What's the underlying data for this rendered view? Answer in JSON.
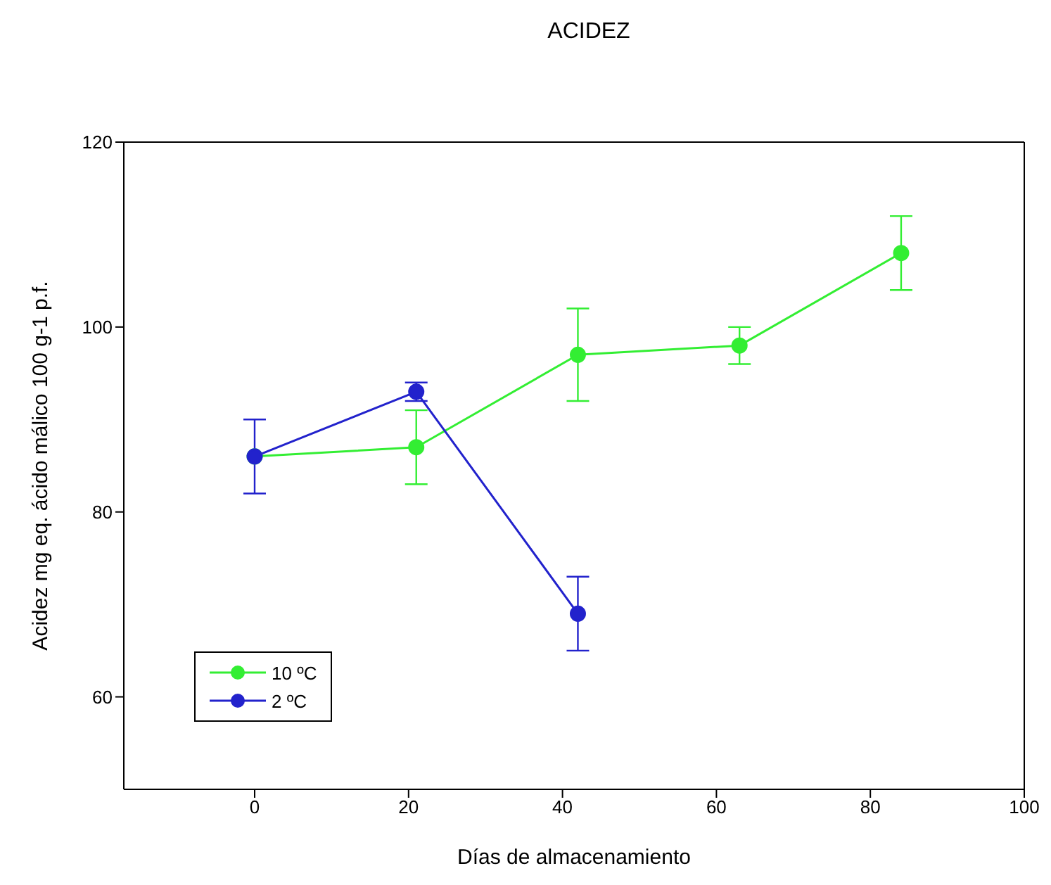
{
  "chart_data": {
    "type": "line",
    "title": "ACIDEZ",
    "xlabel": "Días de almacenamiento",
    "ylabel": "Acidez mg eq. ácido málico 100 g-1 p.f.",
    "xlim": [
      -17,
      100
    ],
    "xticks": [
      0,
      20,
      40,
      60,
      80,
      100
    ],
    "ylim": [
      50,
      120
    ],
    "yticks": [
      60,
      80,
      100,
      120
    ],
    "marker": "circle",
    "line_style": "solid",
    "legend": "bottom left",
    "series": [
      {
        "name": "10 ºC",
        "color": "#33ee33",
        "x": [
          0,
          21,
          42,
          63,
          84
        ],
        "values": [
          86,
          87,
          97,
          98,
          108
        ],
        "errors": [
          null,
          [
            83,
            91
          ],
          [
            92,
            102
          ],
          [
            96,
            100
          ],
          [
            104,
            112
          ]
        ]
      },
      {
        "name": "2 ºC",
        "color": "#2222cc",
        "x": [
          0,
          21,
          42
        ],
        "values": [
          86,
          93,
          69
        ],
        "errors": [
          [
            82,
            90
          ],
          [
            92,
            94
          ],
          [
            65,
            73
          ]
        ]
      }
    ]
  }
}
